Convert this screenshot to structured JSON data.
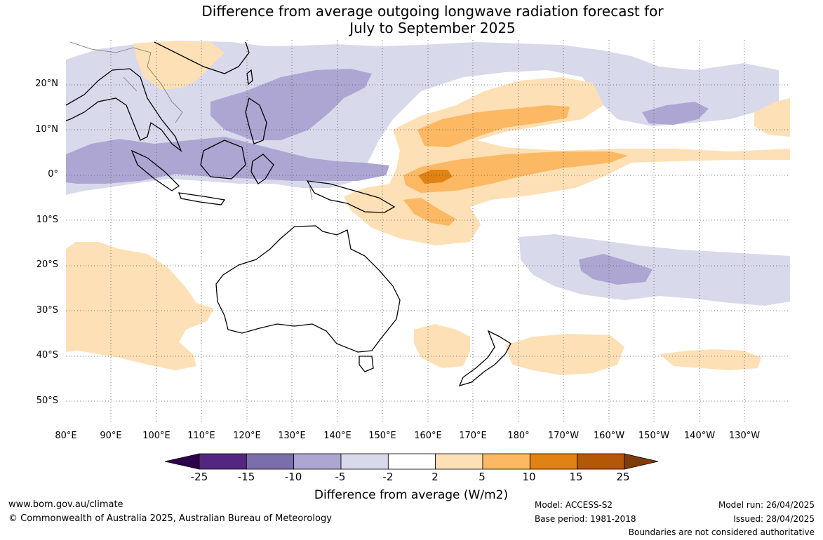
{
  "title": {
    "line1": "Difference from average outgoing longwave radiation forecast for",
    "line2": "July to September 2025"
  },
  "map": {
    "lat_labels": [
      "20°N",
      "10°N",
      "0°",
      "10°S",
      "20°S",
      "30°S",
      "40°S",
      "50°S"
    ],
    "lon_labels": [
      "80°E",
      "90°E",
      "100°E",
      "110°E",
      "120°E",
      "130°E",
      "140°E",
      "150°E",
      "160°E",
      "170°E",
      "180°",
      "170°W",
      "160°W",
      "150°W",
      "140°W",
      "130°W"
    ]
  },
  "colorbar": {
    "labels": [
      "-25",
      "-15",
      "-10",
      "-5",
      "-2",
      "2",
      "5",
      "10",
      "15",
      "25"
    ],
    "colors": [
      "#54267f",
      "#7b6eac",
      "#ada6d3",
      "#d9d9ec",
      "#ffffff",
      "#fee0b6",
      "#fdb863",
      "#e08214",
      "#b35806"
    ],
    "under_color": "#2d004b",
    "over_color": "#7f3b08",
    "title": "Difference from average (W/m2)"
  },
  "footer": {
    "website": "www.bom.gov.au/climate",
    "copyright": "© Commonwealth of Australia 2025, Australian Bureau of Meteorology",
    "model": "Model: ACCESS-S2",
    "base_period": "Base period: 1981-2018",
    "model_run": "Model run: 26/04/2025",
    "issued": "Issued: 28/04/2025",
    "disclaimer": "Boundaries are not considered authoritative"
  }
}
